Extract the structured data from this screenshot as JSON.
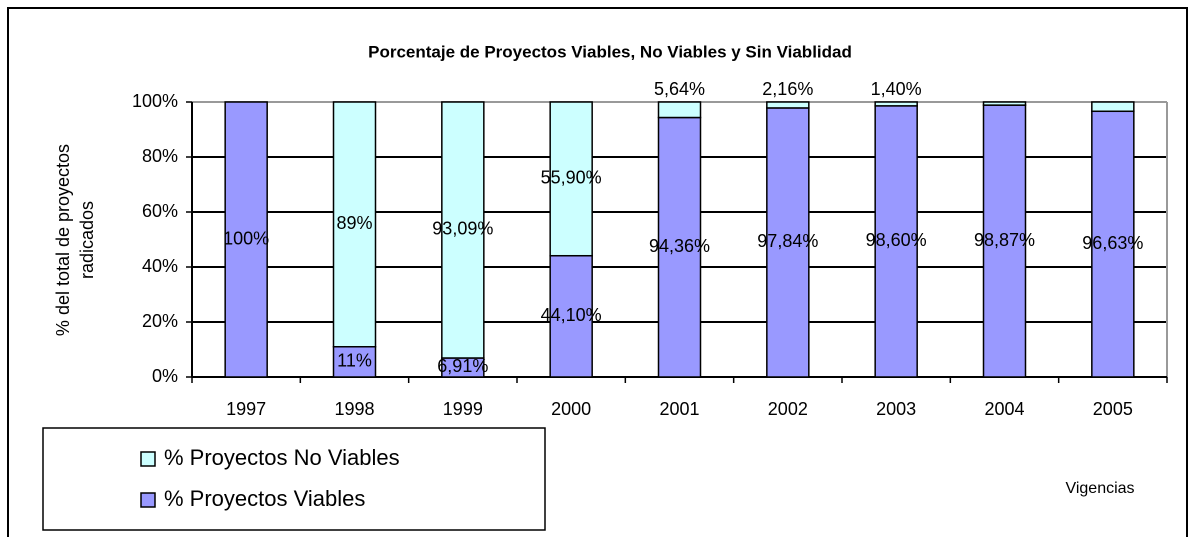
{
  "chart_data": {
    "type": "stacked_bar",
    "title": "Porcentaje de Proyectos Viables, No Viables y Sin Viablidad",
    "y_label": [
      "% del total de proyectos",
      "radicados"
    ],
    "x_label": "Vigencias",
    "categories": [
      "1997",
      "1998",
      "1999",
      "2000",
      "2001",
      "2002",
      "2003",
      "2004",
      "2005"
    ],
    "series": [
      {
        "name": "% Proyectos Viables",
        "color": "#9999ff",
        "values": [
          100,
          11,
          6.91,
          44.1,
          94.36,
          97.84,
          98.6,
          98.87,
          96.63
        ],
        "value_labels": [
          "100%",
          "11%",
          "6,91%",
          "44,10%",
          "94,36%",
          "97,84%",
          "98,60%",
          "98,87%",
          "96,63%"
        ]
      },
      {
        "name": "% Proyectos No Viables",
        "color": "#ccffff",
        "values": [
          0,
          89,
          93.09,
          55.9,
          5.64,
          2.16,
          1.4,
          1.13,
          3.37
        ],
        "value_labels": [
          null,
          "89%",
          "93,09%",
          "55,90%",
          "5,64%",
          "2,16%",
          "1,40%",
          null,
          null
        ]
      }
    ],
    "ylim": [
      0,
      100
    ],
    "yticks": [
      {
        "value": 0,
        "label": "0%"
      },
      {
        "value": 20,
        "label": "20%"
      },
      {
        "value": 40,
        "label": "40%"
      },
      {
        "value": 60,
        "label": "60%"
      },
      {
        "value": 80,
        "label": "80%"
      },
      {
        "value": 100,
        "label": "100%"
      }
    ],
    "grid": true,
    "legend": "bottom-left"
  }
}
